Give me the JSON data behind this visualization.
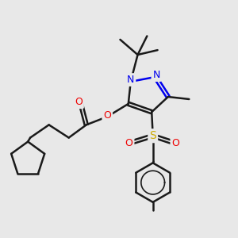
{
  "bg_color": "#e8e8e8",
  "bond_color": "#1a1a1a",
  "bond_width": 1.8,
  "atom_colors": {
    "N": "#0000ee",
    "O": "#ee0000",
    "S": "#ccaa00",
    "C": "#1a1a1a"
  },
  "figsize": [
    3.0,
    3.0
  ],
  "dpi": 100
}
